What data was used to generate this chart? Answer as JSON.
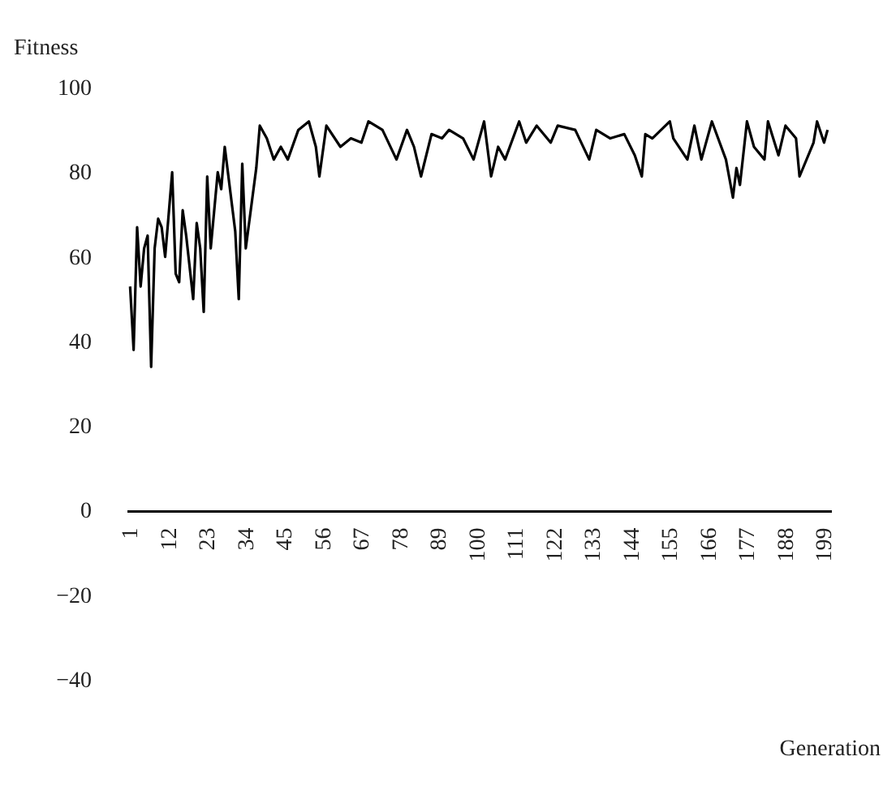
{
  "chart_data": {
    "type": "line",
    "xlabel": "Generation",
    "ylabel": "Fitness",
    "xlim": [
      0,
      201
    ],
    "ylim": [
      -40,
      100
    ],
    "xticks": [
      1,
      12,
      23,
      34,
      45,
      56,
      67,
      78,
      89,
      100,
      111,
      122,
      133,
      144,
      155,
      166,
      177,
      188,
      199
    ],
    "yticks": [
      -40,
      -20,
      0,
      20,
      40,
      60,
      80,
      100
    ],
    "grid": false,
    "marker": "none",
    "line_style": "solid",
    "series": [
      {
        "color": "#000000",
        "x": [
          1,
          2,
          3,
          4,
          5,
          6,
          7,
          8,
          9,
          10,
          11,
          13,
          14,
          15,
          16,
          17,
          19,
          20,
          21,
          22,
          23,
          24,
          26,
          27,
          28,
          31,
          32,
          33,
          34,
          37,
          38,
          40,
          42,
          44,
          46,
          49,
          52,
          54,
          55,
          57,
          61,
          64,
          67,
          69,
          73,
          77,
          80,
          82,
          84,
          87,
          90,
          92,
          96,
          99,
          102,
          104,
          106,
          108,
          112,
          114,
          117,
          121,
          123,
          128,
          132,
          134,
          138,
          142,
          145,
          147,
          148,
          150,
          155,
          156,
          160,
          162,
          164,
          167,
          171,
          173,
          174,
          175,
          177,
          179,
          182,
          183,
          186,
          188,
          191,
          192,
          196,
          197,
          199,
          200
        ],
        "values": [
          53,
          38,
          67,
          53,
          62,
          65,
          34,
          62,
          69,
          67,
          60,
          80,
          56,
          54,
          71,
          65,
          50,
          68,
          62,
          47,
          79,
          62,
          80,
          76,
          86,
          66,
          50,
          82,
          62,
          81,
          91,
          88,
          83,
          86,
          83,
          90,
          92,
          86,
          79,
          91,
          86,
          88,
          87,
          92,
          90,
          83,
          90,
          86,
          79,
          89,
          88,
          90,
          88,
          83,
          92,
          79,
          86,
          83,
          92,
          87,
          91,
          87,
          91,
          90,
          83,
          90,
          88,
          89,
          84,
          79,
          89,
          88,
          92,
          88,
          83,
          91,
          83,
          92,
          83,
          74,
          81,
          77,
          92,
          86,
          83,
          92,
          84,
          91,
          88,
          79,
          87,
          92,
          87,
          90
        ]
      }
    ]
  }
}
